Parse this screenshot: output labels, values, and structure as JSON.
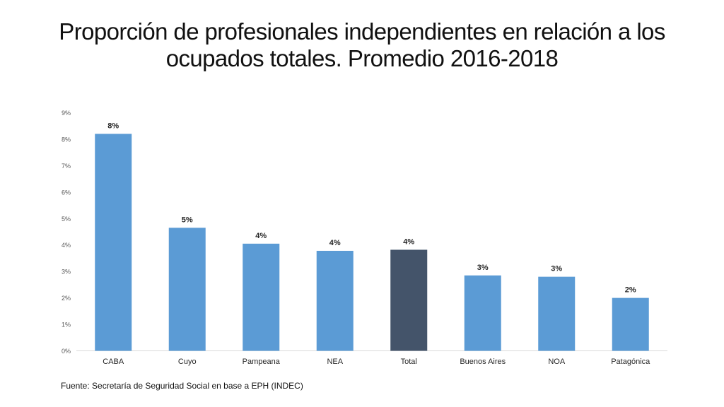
{
  "title": {
    "line1": "Proporción de profesionales independientes en relación a los",
    "line2": "ocupados totales. Promedio 2016-2018"
  },
  "source": "Fuente: Secretaría de Seguridad Social en base a EPH (INDEC)",
  "colors": {
    "bar": "#5b9bd5",
    "highlight": "#44546a",
    "axis": "#d9d9d9",
    "tick_text": "#595959"
  },
  "chart_data": {
    "type": "bar",
    "categories": [
      "CABA",
      "Cuyo",
      "Pampeana",
      "NEA",
      "Total",
      "Buenos Aires",
      "NOA",
      "Patagónica"
    ],
    "values": [
      8.2,
      4.65,
      4.05,
      3.78,
      3.82,
      2.85,
      2.8,
      2.0
    ],
    "value_labels": [
      "8%",
      "5%",
      "4%",
      "4%",
      "4%",
      "3%",
      "3%",
      "2%"
    ],
    "highlight_category": "Total",
    "ylim": [
      0,
      9
    ],
    "yticks": [
      "0%",
      "1%",
      "2%",
      "3%",
      "4%",
      "5%",
      "6%",
      "7%",
      "8%",
      "9%"
    ],
    "grid": false,
    "xlabel": "",
    "ylabel": ""
  }
}
